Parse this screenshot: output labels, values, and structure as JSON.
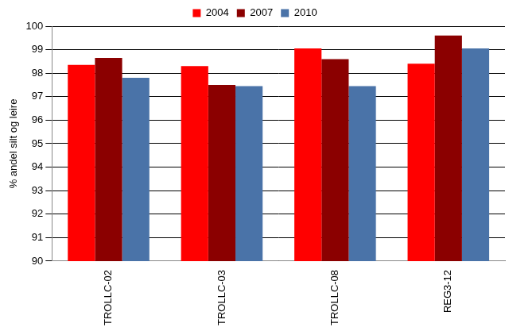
{
  "chart_data": {
    "type": "bar",
    "categories": [
      "TROLLC-02",
      "TROLLC-03",
      "TROLLC-08",
      "REG3-12"
    ],
    "series": [
      {
        "name": "2004",
        "color": "#ff0000",
        "values": [
          98.35,
          98.3,
          99.05,
          98.4
        ]
      },
      {
        "name": "2007",
        "color": "#8b0000",
        "values": [
          98.65,
          97.5,
          98.6,
          99.6
        ]
      },
      {
        "name": "2010",
        "color": "#4a73a8",
        "values": [
          97.8,
          97.45,
          97.45,
          99.05
        ]
      }
    ],
    "ylabel": "% andel silt og leire",
    "ylim": [
      90,
      100
    ],
    "yticks": [
      90,
      91,
      92,
      93,
      94,
      95,
      96,
      97,
      98,
      99,
      100
    ],
    "grid": true,
    "legend": "top"
  }
}
